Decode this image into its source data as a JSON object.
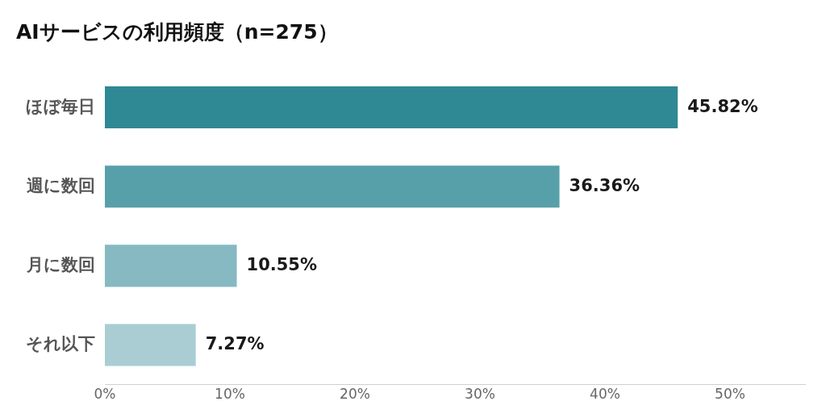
{
  "chart_data": {
    "type": "bar",
    "orientation": "horizontal",
    "title": "AIサービスの利用頻度（n=275）",
    "categories": [
      "ほぼ毎日",
      "週に数回",
      "月に数回",
      "それ以下"
    ],
    "values": [
      45.82,
      36.36,
      10.55,
      7.27
    ],
    "colors": [
      "#2e8995",
      "#58a0a9",
      "#86b9c1",
      "#a9cdd3"
    ],
    "value_labels": [
      "45.82%",
      "36.36%",
      "10.55%",
      "7.27%"
    ],
    "xlim": [
      0,
      56
    ],
    "xticks": [
      {
        "value": 0,
        "label": "0%"
      },
      {
        "value": 10,
        "label": "10%"
      },
      {
        "value": 20,
        "label": "20%"
      },
      {
        "value": 30,
        "label": "30%"
      },
      {
        "value": 40,
        "label": "40%"
      },
      {
        "value": 50,
        "label": "50%"
      }
    ],
    "legend": false
  }
}
